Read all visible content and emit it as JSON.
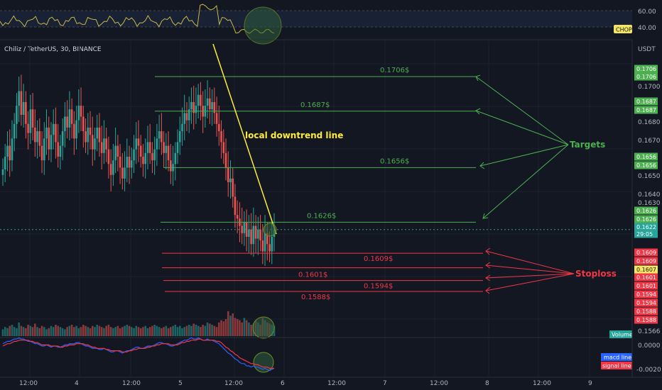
{
  "colors": {
    "background": "#131722",
    "grid": "#1e222d",
    "target": "#4caf50",
    "stoploss": "#f23645",
    "downtrend": "#ffeb3b",
    "up_candle": "#26a69a",
    "down_candle": "#ef5350",
    "macd": "#2962ff",
    "signal": "#f23645",
    "chop": "#c9b84a",
    "current": "#26a69a",
    "highlight": "#f5c842"
  },
  "header": {
    "symbol_line": "Chiliz / TetherUS, 30, BINANCE"
  },
  "chop_panel": {
    "label": "CHOP",
    "ticks": [
      "60.00",
      "40.00"
    ]
  },
  "price_axis": {
    "unit": "USDT",
    "ticks": [
      "0.1700",
      "0.1680",
      "0.1670",
      "0.1650",
      "0.1640",
      "0.1630",
      "0.1566"
    ]
  },
  "price_badges": [
    {
      "text": "0.1706",
      "kind": "target",
      "ypx": 97
    },
    {
      "text": "0.1706",
      "kind": "target",
      "ypx": 108
    },
    {
      "text": "0.1687",
      "kind": "target",
      "ypx": 143
    },
    {
      "text": "0.1687",
      "kind": "target",
      "ypx": 155
    },
    {
      "text": "0.1656",
      "kind": "target",
      "ypx": 221
    },
    {
      "text": "0.1656",
      "kind": "target",
      "ypx": 233
    },
    {
      "text": "0.1626",
      "kind": "target",
      "ypx": 297
    },
    {
      "text": "0.1626",
      "kind": "target",
      "ypx": 309
    },
    {
      "text": "0.1622",
      "kind": "current",
      "ypx": 320
    },
    {
      "text": "29:05",
      "kind": "current",
      "ypx": 330
    },
    {
      "text": "0.1609",
      "kind": "stop",
      "ypx": 356
    },
    {
      "text": "0.1609",
      "kind": "stop",
      "ypx": 368
    },
    {
      "text": "0.1607",
      "kind": "cur2",
      "ypx": 380
    },
    {
      "text": "0.1601",
      "kind": "stop",
      "ypx": 391
    },
    {
      "text": "0.1601",
      "kind": "stop",
      "ypx": 403
    },
    {
      "text": "0.1594",
      "kind": "stop",
      "ypx": 415
    },
    {
      "text": "0.1594",
      "kind": "stop",
      "ypx": 427
    },
    {
      "text": "0.1588",
      "kind": "stop",
      "ypx": 439
    },
    {
      "text": "0.1588",
      "kind": "stop",
      "ypx": 451
    }
  ],
  "macd_axis": {
    "ticks": [
      "0.0000",
      "-0.0020"
    ],
    "legend": [
      "macd line",
      "signal line"
    ],
    "volume_label": "Volume"
  },
  "time_axis": {
    "ticks": [
      "12:00",
      "4",
      "12:00",
      "5",
      "12:00",
      "6",
      "12:00",
      "7",
      "12:00",
      "8",
      "12:00",
      "9"
    ]
  },
  "chart_data": {
    "type": "line",
    "title": "Chiliz / TetherUS, 30, BINANCE",
    "ylabel": "USDT",
    "ylim": [
      0.1562,
      0.1722
    ],
    "targets": [
      {
        "label": "0.1706$",
        "price": 0.1706
      },
      {
        "label": "0.1687$",
        "price": 0.1687
      },
      {
        "label": "0.1656$",
        "price": 0.1656
      },
      {
        "label": "0.1626$",
        "price": 0.1626
      }
    ],
    "stoplosses": [
      {
        "label": "0.1609$",
        "price": 0.1609
      },
      {
        "label": "0.1601$",
        "price": 0.1601
      },
      {
        "label": "0.1594$",
        "price": 0.1594
      },
      {
        "label": "0.1588$",
        "price": 0.1588
      }
    ],
    "annotations": {
      "targets_label": "Targets",
      "stoploss_label": "Stoploss",
      "downtrend_label": "local downtrend line"
    },
    "current_price": 0.1622,
    "series": [
      {
        "close": [
          0.1655,
          0.1662,
          0.1668,
          0.166,
          0.1672,
          0.168,
          0.169,
          0.1698,
          0.1685,
          0.1692,
          0.168,
          0.1675,
          0.1688,
          0.1678,
          0.167,
          0.1676,
          0.1668,
          0.166,
          0.1672,
          0.1678,
          0.1666,
          0.1674,
          0.168,
          0.167,
          0.1662,
          0.1668,
          0.1676,
          0.1684,
          0.1678,
          0.1688,
          0.168,
          0.1672,
          0.1682,
          0.169,
          0.1684,
          0.1676,
          0.167,
          0.1678,
          0.1674,
          0.1666,
          0.1672,
          0.1678,
          0.167,
          0.1664,
          0.1672,
          0.1666,
          0.1658,
          0.1652,
          0.166,
          0.1668,
          0.1662,
          0.1656,
          0.165,
          0.1656,
          0.1662,
          0.1656,
          0.166,
          0.1666,
          0.1672,
          0.1668,
          0.1662,
          0.1658,
          0.1664,
          0.167,
          0.1664,
          0.166,
          0.1666,
          0.1672,
          0.1676,
          0.167,
          0.1664,
          0.1668,
          0.166,
          0.1654,
          0.1658,
          0.1664,
          0.167,
          0.1676,
          0.168,
          0.1686,
          0.1682,
          0.1688,
          0.1692,
          0.1686,
          0.169,
          0.1696,
          0.169,
          0.1684,
          0.169,
          0.1694,
          0.1688,
          0.1692,
          0.1686,
          0.168,
          0.1676,
          0.167,
          0.1664,
          0.1656,
          0.1648,
          0.165,
          0.164,
          0.163,
          0.1628,
          0.1624,
          0.162,
          0.1626,
          0.1618,
          0.1622,
          0.1614,
          0.1624,
          0.1617,
          0.1622,
          0.1616,
          0.161,
          0.162,
          0.1614,
          0.161,
          0.1618,
          0.1622
        ],
        "volume": [
          6,
          8,
          7,
          9,
          10,
          8,
          7,
          12,
          9,
          8,
          7,
          10,
          9,
          8,
          11,
          8,
          7,
          9,
          8,
          6,
          7,
          9,
          8,
          10,
          9,
          8,
          7,
          6,
          8,
          9,
          10,
          8,
          9,
          7,
          8,
          10,
          9,
          8,
          7,
          9,
          8,
          10,
          9,
          8,
          7,
          9,
          10,
          8,
          7,
          8,
          9,
          7,
          8,
          9,
          10,
          9,
          8,
          7,
          9,
          8,
          7,
          8,
          9,
          7,
          8,
          9,
          10,
          9,
          8,
          7,
          8,
          9,
          7,
          8,
          9,
          10,
          8,
          9,
          7,
          8,
          9,
          10,
          9,
          11,
          10,
          9,
          8,
          10,
          9,
          12,
          11,
          10,
          9,
          8,
          12,
          14,
          13,
          15,
          22,
          18,
          20,
          16,
          15,
          14,
          12,
          16,
          14,
          12,
          10,
          11,
          14,
          12,
          10,
          16,
          14,
          12,
          11,
          10,
          9
        ],
        "macd": [
          0.0002,
          0.0003,
          0.0004,
          0.0004,
          0.0005,
          0.0006,
          0.0006,
          0.0007,
          0.0006,
          0.0006,
          0.0005,
          0.0004,
          0.0004,
          0.0003,
          0.0002,
          0.0002,
          0.0001,
          0.0,
          0.0,
          0.0001,
          0.0,
          -0.0001,
          0.0,
          0.0,
          -0.0001,
          -0.0001,
          0.0,
          0.0001,
          0.0001,
          0.0002,
          0.0002,
          0.0002,
          0.0003,
          0.0003,
          0.0002,
          0.0001,
          0.0,
          0.0,
          -0.0001,
          -0.0002,
          -0.0002,
          -0.0002,
          -0.0003,
          -0.0003,
          -0.0002,
          -0.0003,
          -0.0004,
          -0.0005,
          -0.0005,
          -0.0004,
          -0.0004,
          -0.0005,
          -0.0006,
          -0.0005,
          -0.0004,
          -0.0004,
          -0.0003,
          -0.0002,
          -0.0001,
          -0.0001,
          -0.0002,
          -0.0002,
          -0.0001,
          0.0,
          0.0,
          0.0,
          0.0001,
          0.0002,
          0.0003,
          0.0003,
          0.0002,
          0.0002,
          0.0001,
          0.0,
          0.0,
          0.0001,
          0.0002,
          0.0003,
          0.0004,
          0.0005,
          0.0005,
          0.0006,
          0.0007,
          0.0006,
          0.0006,
          0.0007,
          0.0006,
          0.0005,
          0.0005,
          0.0006,
          0.0005,
          0.0005,
          0.0004,
          0.0003,
          0.0002,
          0.0,
          -0.0002,
          -0.0004,
          -0.0006,
          -0.0007,
          -0.0009,
          -0.0011,
          -0.0012,
          -0.0014,
          -0.0015,
          -0.0015,
          -0.0017,
          -0.0017,
          -0.0018,
          -0.0017,
          -0.0018,
          -0.0018,
          -0.0019,
          -0.002,
          -0.0019,
          -0.002,
          -0.0021,
          -0.002,
          -0.0019
        ],
        "signal": [
          0.0,
          0.0001,
          0.0002,
          0.0002,
          0.0003,
          0.0004,
          0.0004,
          0.0005,
          0.0005,
          0.0005,
          0.0005,
          0.0005,
          0.0004,
          0.0004,
          0.0003,
          0.0003,
          0.0002,
          0.0001,
          0.0001,
          0.0001,
          0.0001,
          0.0,
          0.0,
          0.0,
          0.0,
          -0.0001,
          -0.0001,
          0.0,
          0.0,
          0.0001,
          0.0001,
          0.0001,
          0.0002,
          0.0002,
          0.0002,
          0.0002,
          0.0001,
          0.0001,
          0.0,
          -0.0001,
          -0.0001,
          -0.0002,
          -0.0002,
          -0.0002,
          -0.0002,
          -0.0003,
          -0.0003,
          -0.0004,
          -0.0004,
          -0.0004,
          -0.0004,
          -0.0004,
          -0.0005,
          -0.0005,
          -0.0005,
          -0.0004,
          -0.0004,
          -0.0003,
          -0.0003,
          -0.0002,
          -0.0002,
          -0.0002,
          -0.0002,
          -0.0001,
          -0.0001,
          0.0,
          0.0,
          0.0001,
          0.0001,
          0.0002,
          0.0002,
          0.0002,
          0.0002,
          0.0001,
          0.0001,
          0.0001,
          0.0001,
          0.0002,
          0.0003,
          0.0003,
          0.0004,
          0.0004,
          0.0005,
          0.0005,
          0.0005,
          0.0006,
          0.0006,
          0.0005,
          0.0005,
          0.0005,
          0.0005,
          0.0005,
          0.0005,
          0.0004,
          0.0004,
          0.0003,
          0.0001,
          -0.0001,
          -0.0002,
          -0.0004,
          -0.0005,
          -0.0007,
          -0.0008,
          -0.001,
          -0.0011,
          -0.0012,
          -0.0013,
          -0.0014,
          -0.0015,
          -0.0015,
          -0.0016,
          -0.0016,
          -0.0017,
          -0.0018,
          -0.0018,
          -0.0018,
          -0.0019,
          -0.0019,
          -0.0019
        ]
      }
    ]
  }
}
